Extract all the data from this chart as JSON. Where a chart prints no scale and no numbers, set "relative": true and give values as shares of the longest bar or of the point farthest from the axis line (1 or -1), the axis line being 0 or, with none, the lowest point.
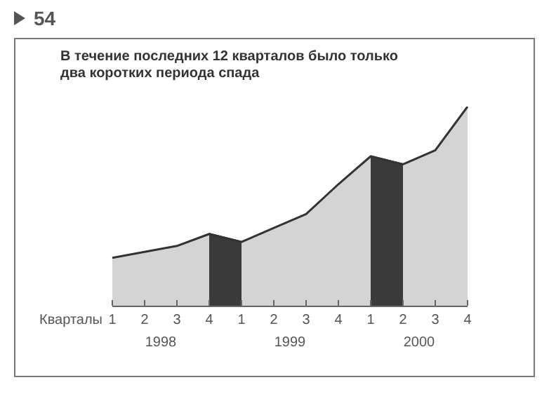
{
  "chart_data": {
    "type": "area",
    "title": "В течение последних 12 кварталов было только два коротких периода спада",
    "xlabel": "Кварталы",
    "annotations": [
      "54",
      "1998",
      "1999",
      "2000"
    ],
    "categories": [
      "1",
      "2",
      "3",
      "4",
      "1",
      "2",
      "3",
      "4",
      "1",
      "2",
      "3",
      "4"
    ],
    "relative": true,
    "legend": false,
    "grid": false,
    "series": [
      {
        "color": "#d4d4d4",
        "values": [
          0.24,
          0.27,
          0.3,
          0.36,
          0.32,
          0.39,
          0.46,
          0.61,
          0.75,
          0.71,
          0.78,
          1
        ]
      },
      {
        "color": "#3a3a3a",
        "values": [
          null,
          null,
          null,
          0.36,
          0.32,
          null,
          null,
          null,
          0.75,
          0.71,
          null,
          null
        ]
      }
    ]
  }
}
